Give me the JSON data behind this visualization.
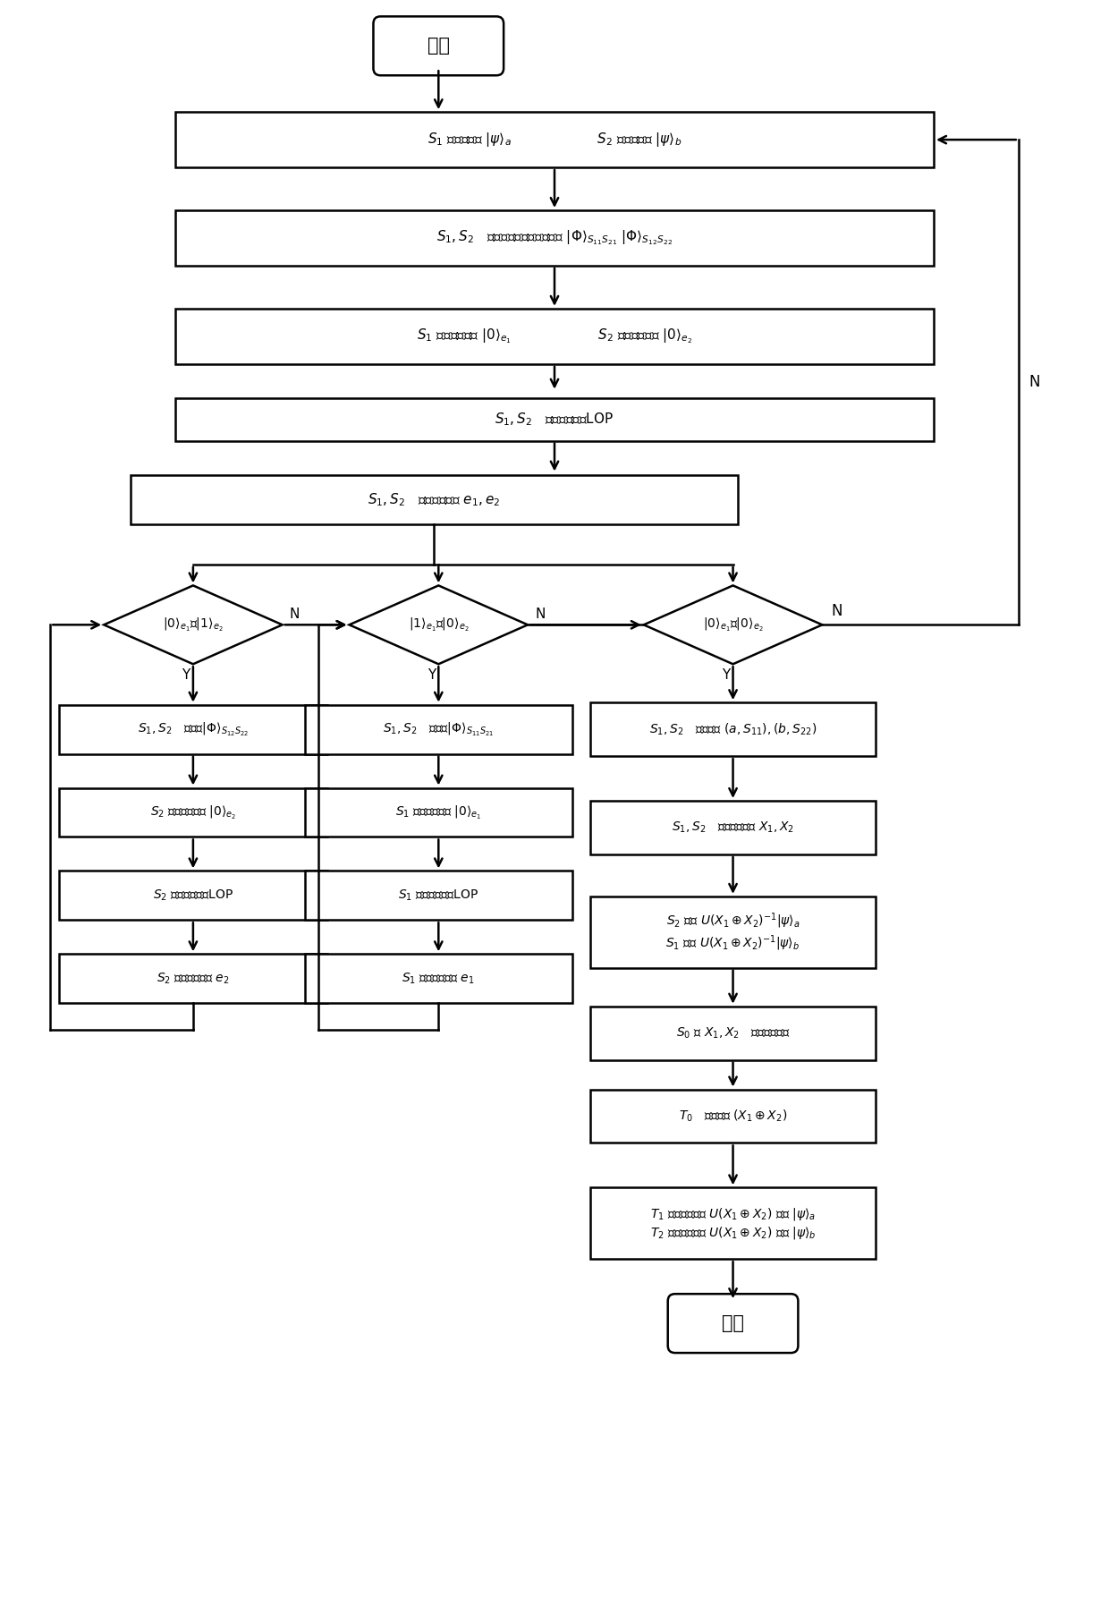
{
  "bg_color": "#ffffff",
  "nodes": {
    "start_text": "开始",
    "end_text": "结束",
    "box1_text": "$S_1$ 制备量子态 $|\\psi\\rangle_a$                    $S_2$ 制备量子态 $|\\psi\\rangle_b$",
    "box2_text": "$S_1,S_2$   预共享两对非最大纠缠对 $|\\Phi\\rangle_{S_{11}S_{21}}$ $|\\Phi\\rangle_{S_{12}S_{22}}$",
    "box3_text": "$S_1$ 引入辅助粒子 $|0\\rangle_{e_1}$                    $S_2$ 引入辅助粒子 $|0\\rangle_{e_2}$",
    "box4_text": "$S_1,S_2$   执行局域操作LOP",
    "box5_text": "$S_1,S_2$   测量辅助粒子 $e_1,e_2$",
    "dia1_text": "$|0\\rangle_{e_1}$和$|1\\rangle_{e_2}$",
    "dia2_text": "$|1\\rangle_{e_1}$和$|0\\rangle_{e_2}$",
    "dia3_text": "$|0\\rangle_{e_1}$和$|0\\rangle_{e_2}$",
    "box6_text": "$S_1,S_2$   预共享$|\\Phi\\rangle_{S_{12}S_{22}}$",
    "box7_text": "$S_1,S_2$   预共享$|\\Phi\\rangle_{S_{11}S_{21}}$",
    "box8_text": "$S_2$ 引入辅助粒子 $|0\\rangle_{e_2}$",
    "box9_text": "$S_1$ 引入辅助粒子 $|0\\rangle_{e_1}$",
    "box10_text": "$S_2$ 执行局域操作LOP",
    "box11_text": "$S_1$ 执行局域操作LOP",
    "box12_text": "$S_2$ 测量辅助粒子 $e_2$",
    "box13_text": "$S_1$ 测量辅助粒子 $e_1$",
    "rb1_text": "$S_1,S_2$   测量粒子 $(a,S_{11}),(b,S_{22})$",
    "rb2_text": "$S_1,S_2$   获得经典信息 $X_1,X_2$",
    "rb3_line1": "$S_2$ 得到 $U(X_1\\oplus X_2)^{-1}|\\psi\\rangle_a$",
    "rb3_line2": "$S_1$ 得到 $U(X_1\\oplus X_2)^{-1}|\\psi\\rangle_b$",
    "rb4_text": "$S_0$ 对 $X_1,X_2$   执行异或操作",
    "rb5_text": "$T_0$   复制传输 $(X_1\\oplus X_2)$",
    "rb6_line1": "$T_1$ 执行解码操作 $U(X_1\\oplus X_2)$ 得到 $|\\psi\\rangle_a$",
    "rb6_line2": "$T_2$ 执行解码操作 $U(X_1\\oplus X_2)$ 得到 $|\\psi\\rangle_b$",
    "label_Y": "Y",
    "label_N": "N"
  }
}
